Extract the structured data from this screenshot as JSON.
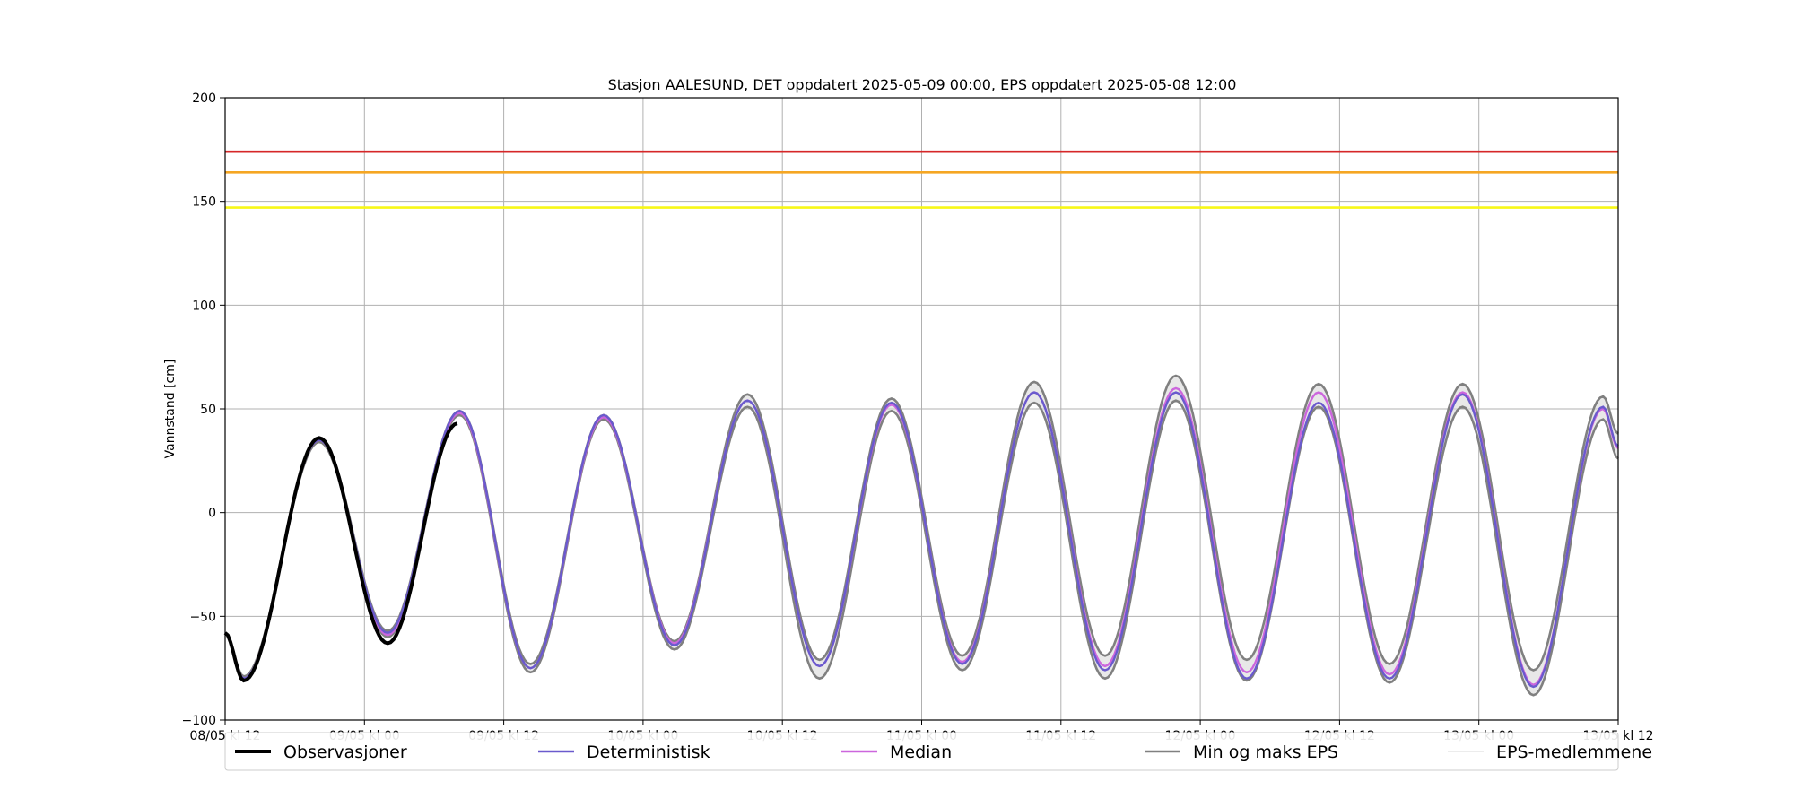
{
  "chart_data": {
    "type": "line",
    "title": "Stasjon AALESUND, DET oppdatert 2025-05-09 00:00, EPS oppdatert 2025-05-08 12:00",
    "xlabel": "",
    "ylabel": "Vannstand [cm]",
    "x_unit": "hours",
    "xlim": [
      0,
      120
    ],
    "ylim": [
      -100,
      200
    ],
    "grid": true,
    "legend_position": "bottom",
    "x_ticks": [
      {
        "value": 0,
        "label": "08/05 kl 12"
      },
      {
        "value": 12,
        "label": "09/05 kl 00"
      },
      {
        "value": 24,
        "label": "09/05 kl 12"
      },
      {
        "value": 36,
        "label": "10/05 kl 00"
      },
      {
        "value": 48,
        "label": "10/05 kl 12"
      },
      {
        "value": 60,
        "label": "11/05 kl 00"
      },
      {
        "value": 72,
        "label": "11/05 kl 12"
      },
      {
        "value": 84,
        "label": "12/05 kl 00"
      },
      {
        "value": 96,
        "label": "12/05 kl 12"
      },
      {
        "value": 108,
        "label": "13/05 kl 00"
      },
      {
        "value": 120,
        "label": "13/05 kl 12"
      }
    ],
    "y_ticks": [
      {
        "value": -100,
        "label": "−100"
      },
      {
        "value": -50,
        "label": "−50"
      },
      {
        "value": 0,
        "label": "0"
      },
      {
        "value": 50,
        "label": "50"
      },
      {
        "value": 100,
        "label": "100"
      },
      {
        "value": 150,
        "label": "150"
      },
      {
        "value": 200,
        "label": "200"
      }
    ],
    "threshold_lines": [
      {
        "value": 174,
        "color": "#d62728"
      },
      {
        "value": 164,
        "color": "#f5a623"
      },
      {
        "value": 147,
        "color": "#f7f716"
      }
    ],
    "extrema": {
      "observed": [
        [
          0,
          -58
        ],
        [
          1.6,
          -81
        ],
        [
          8.1,
          36
        ],
        [
          14.0,
          -63
        ],
        [
          20.0,
          43
        ]
      ],
      "deterministic": [
        [
          0,
          -58
        ],
        [
          1.6,
          -80
        ],
        [
          8.1,
          35
        ],
        [
          14.0,
          -58
        ],
        [
          20.2,
          49
        ],
        [
          26.3,
          -75
        ],
        [
          32.6,
          47
        ],
        [
          38.7,
          -64
        ],
        [
          45.0,
          54
        ],
        [
          51.2,
          -74
        ],
        [
          57.4,
          53
        ],
        [
          63.5,
          -73
        ],
        [
          69.7,
          58
        ],
        [
          75.8,
          -76
        ],
        [
          81.9,
          58
        ],
        [
          88.0,
          -80
        ],
        [
          94.2,
          53
        ],
        [
          100.3,
          -80
        ],
        [
          106.6,
          57
        ],
        [
          112.7,
          -84
        ],
        [
          118.7,
          51
        ],
        [
          120,
          32
        ]
      ],
      "median": [
        [
          0,
          -58
        ],
        [
          1.6,
          -80
        ],
        [
          8.1,
          35
        ],
        [
          14.0,
          -59
        ],
        [
          20.2,
          48
        ],
        [
          26.3,
          -75
        ],
        [
          32.6,
          46
        ],
        [
          38.7,
          -63
        ],
        [
          45.0,
          54
        ],
        [
          51.2,
          -74
        ],
        [
          57.4,
          52
        ],
        [
          63.5,
          -72
        ],
        [
          69.7,
          58
        ],
        [
          75.8,
          -74
        ],
        [
          81.9,
          60
        ],
        [
          88.0,
          -77
        ],
        [
          94.2,
          58
        ],
        [
          100.3,
          -78
        ],
        [
          106.6,
          58
        ],
        [
          112.7,
          -83
        ],
        [
          118.7,
          50
        ],
        [
          120,
          31
        ]
      ],
      "eps_max": [
        [
          0,
          -58
        ],
        [
          1.6,
          -79
        ],
        [
          8.1,
          36
        ],
        [
          14.0,
          -57
        ],
        [
          20.2,
          49
        ],
        [
          26.3,
          -73
        ],
        [
          32.6,
          47
        ],
        [
          38.7,
          -62
        ],
        [
          45.0,
          57
        ],
        [
          51.2,
          -71
        ],
        [
          57.4,
          55
        ],
        [
          63.5,
          -69
        ],
        [
          69.7,
          63
        ],
        [
          75.8,
          -69
        ],
        [
          81.9,
          66
        ],
        [
          88.0,
          -71
        ],
        [
          94.2,
          62
        ],
        [
          100.3,
          -73
        ],
        [
          106.6,
          62
        ],
        [
          112.7,
          -76
        ],
        [
          118.7,
          56
        ],
        [
          120,
          38
        ]
      ],
      "eps_min": [
        [
          0,
          -58
        ],
        [
          1.6,
          -81
        ],
        [
          8.1,
          34
        ],
        [
          14.0,
          -60
        ],
        [
          20.2,
          47
        ],
        [
          26.3,
          -77
        ],
        [
          32.6,
          45
        ],
        [
          38.7,
          -66
        ],
        [
          45.0,
          51
        ],
        [
          51.2,
          -80
        ],
        [
          57.4,
          49
        ],
        [
          63.5,
          -76
        ],
        [
          69.7,
          53
        ],
        [
          75.8,
          -80
        ],
        [
          81.9,
          54
        ],
        [
          88.0,
          -81
        ],
        [
          94.2,
          51
        ],
        [
          100.3,
          -82
        ],
        [
          106.6,
          51
        ],
        [
          112.7,
          -88
        ],
        [
          118.7,
          45
        ],
        [
          120,
          26
        ]
      ]
    },
    "series": [
      {
        "name": "Observasjoner",
        "color": "#000000",
        "key": "observed"
      },
      {
        "name": "Deterministisk",
        "color": "#6a5acd",
        "key": "deterministic"
      },
      {
        "name": "Median",
        "color": "#cc66dd",
        "key": "median"
      },
      {
        "name": "Min og maks EPS",
        "color": "#808080",
        "key": "eps_minmax"
      },
      {
        "name": "EPS-medlemmene",
        "color": "#d8d8d8",
        "key": "eps_members"
      }
    ]
  }
}
